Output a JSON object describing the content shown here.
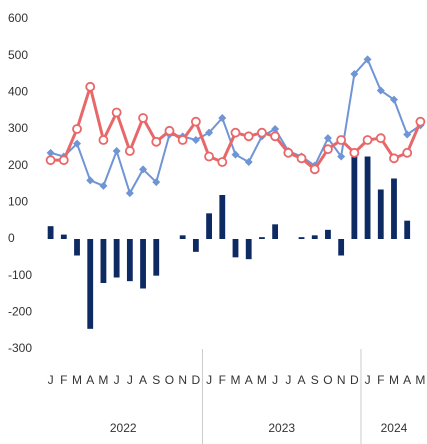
{
  "chart_data": {
    "type": "bar-line",
    "categories": [
      "J",
      "F",
      "M",
      "A",
      "M",
      "J",
      "J",
      "A",
      "S",
      "O",
      "N",
      "D",
      "J",
      "F",
      "M",
      "A",
      "M",
      "J",
      "J",
      "A",
      "S",
      "O",
      "N",
      "D",
      "J",
      "F",
      "M",
      "A",
      "M"
    ],
    "year_groups": [
      {
        "label": "2022",
        "count": 12
      },
      {
        "label": "2023",
        "count": 12
      },
      {
        "label": "2024",
        "count": 5
      }
    ],
    "series": [
      {
        "type": "bar",
        "color": "#0d2a63",
        "values": [
          35,
          12,
          -45,
          -245,
          -120,
          -105,
          -115,
          -135,
          -100,
          0,
          10,
          -35,
          70,
          120,
          -50,
          -55,
          5,
          40,
          0,
          5,
          10,
          25,
          -45,
          225,
          225,
          135,
          165,
          50,
          null
        ]
      },
      {
        "type": "line",
        "marker": "diamond",
        "color": "#6f95d6",
        "values": [
          235,
          225,
          260,
          160,
          145,
          240,
          125,
          190,
          155,
          285,
          280,
          270,
          290,
          330,
          230,
          210,
          280,
          300,
          240,
          225,
          200,
          275,
          225,
          450,
          490,
          405,
          380,
          285,
          310
        ]
      },
      {
        "type": "line",
        "marker": "circle",
        "color": "#e8686a",
        "values": [
          215,
          215,
          300,
          415,
          270,
          345,
          240,
          330,
          265,
          295,
          270,
          320,
          225,
          210,
          290,
          280,
          290,
          280,
          235,
          220,
          190,
          245,
          270,
          235,
          270,
          275,
          220,
          235,
          320
        ]
      }
    ],
    "ylim": [
      -300,
      600
    ],
    "yticks": [
      -300,
      -200,
      -100,
      0,
      100,
      200,
      300,
      400,
      500,
      600
    ],
    "grid": false
  }
}
